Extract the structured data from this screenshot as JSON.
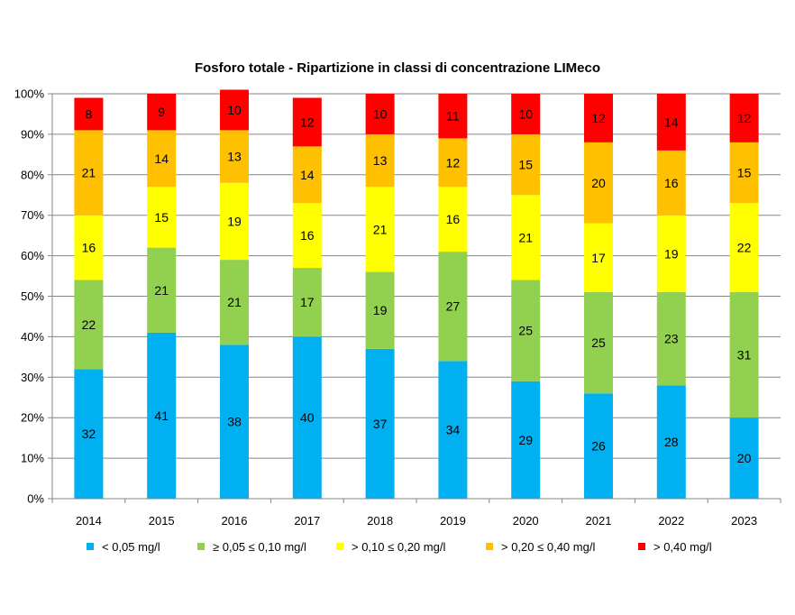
{
  "chart_data": {
    "type": "bar",
    "stacked": true,
    "percent": true,
    "title": "Fosforo totale - Ripartizione  in classi  di concentrazione LIMeco",
    "xlabel": "",
    "ylabel": "",
    "ylim": [
      0,
      100
    ],
    "yticks": [
      "0%",
      "10%",
      "20%",
      "30%",
      "40%",
      "50%",
      "60%",
      "70%",
      "80%",
      "90%",
      "100%"
    ],
    "grid": true,
    "legend_position": "bottom",
    "categories": [
      "2014",
      "2015",
      "2016",
      "2017",
      "2018",
      "2019",
      "2020",
      "2021",
      "2022",
      "2023"
    ],
    "series": [
      {
        "name": "< 0,05 mg/l",
        "color": "#00b0f0",
        "values": [
          32,
          41,
          38,
          40,
          37,
          34,
          29,
          26,
          28,
          20
        ]
      },
      {
        "name": "≥ 0,05 ≤ 0,10 mg/l",
        "color": "#92d050",
        "values": [
          22,
          21,
          21,
          17,
          19,
          27,
          25,
          25,
          23,
          31
        ]
      },
      {
        "name": "> 0,10  ≤ 0,20 mg/l",
        "color": "#ffff00",
        "values": [
          16,
          15,
          19,
          16,
          21,
          16,
          21,
          17,
          19,
          22
        ]
      },
      {
        "name": "> 0,20  ≤ 0,40 mg/l",
        "color": "#ffc000",
        "values": [
          21,
          14,
          13,
          14,
          13,
          12,
          15,
          20,
          16,
          15
        ]
      },
      {
        "name": "> 0,40 mg/l",
        "color": "#ff0000",
        "values": [
          8,
          9,
          10,
          12,
          10,
          11,
          10,
          12,
          14,
          12
        ]
      }
    ]
  }
}
